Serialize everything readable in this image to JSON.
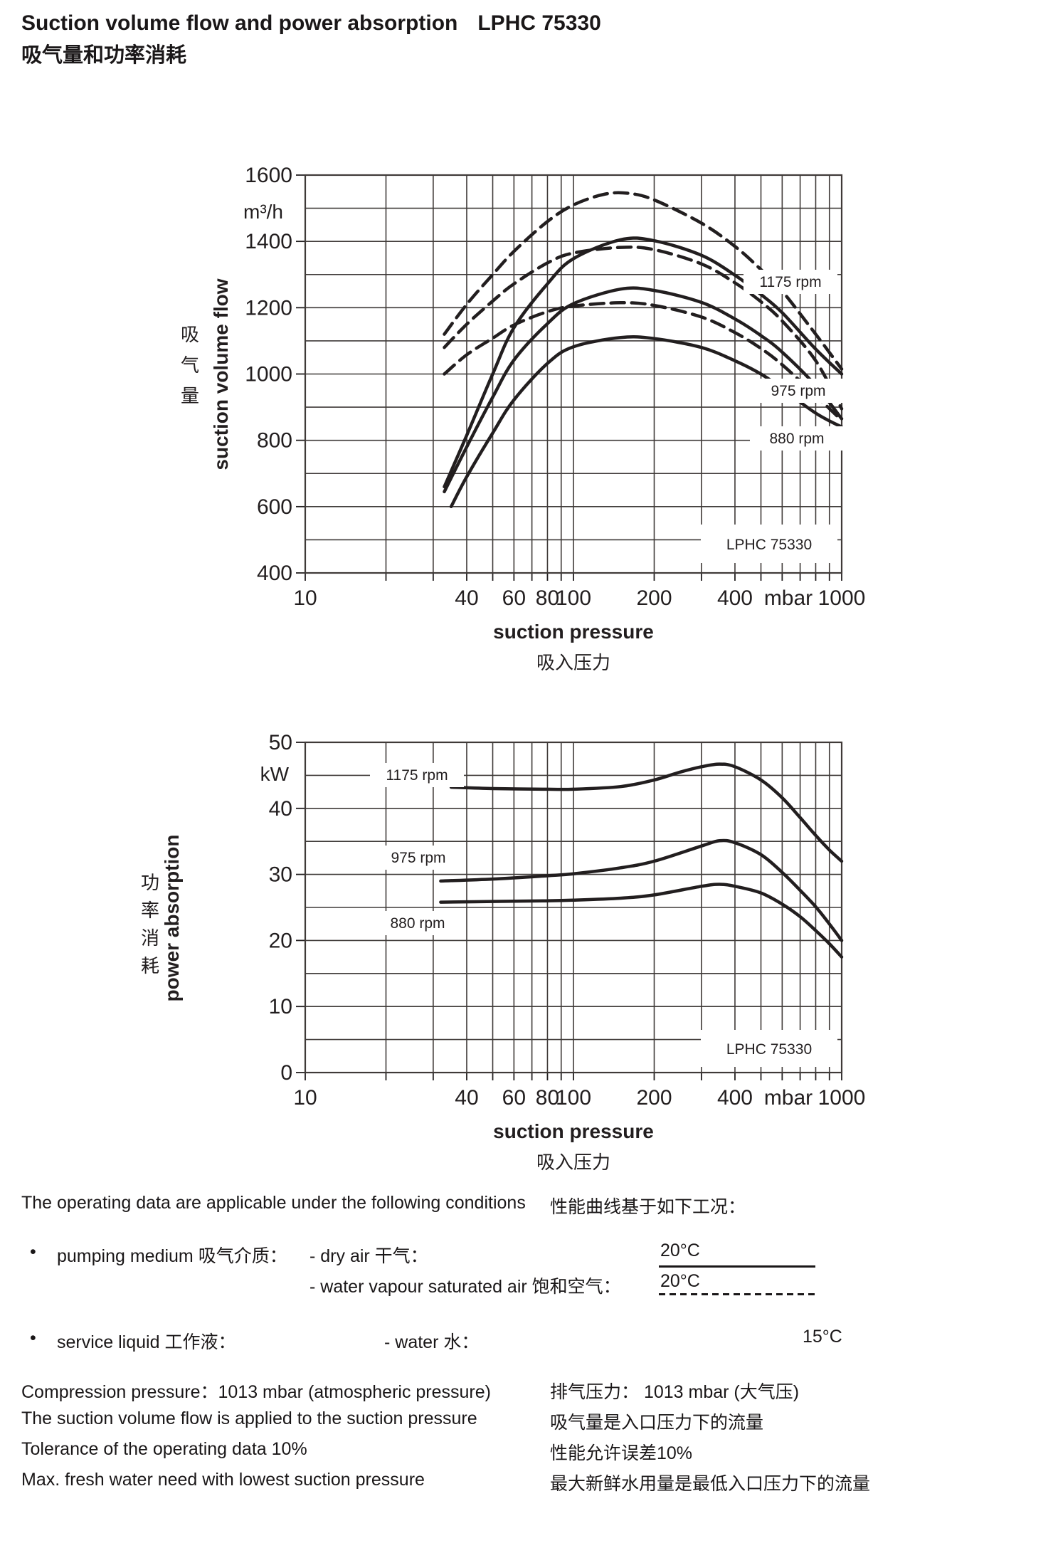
{
  "page": {
    "background": "#ffffff",
    "ink": "#221e1f",
    "grid_color": "#3f3a38"
  },
  "header": {
    "title_en": "Suction volume flow and power absorption",
    "model": "LPHC 75330",
    "title_cn": "吸气量和功率消耗"
  },
  "chart_data": [
    {
      "type": "line",
      "xscale": "log",
      "ylabel": "suction volume flow",
      "ylabel_cn": "吸气量",
      "unit": "m³/h",
      "xlabel": "suction pressure",
      "xlabel_cn": "吸入压力",
      "x_unit": "mbar",
      "xlim": [
        10,
        1000
      ],
      "ylim": [
        400,
        1600
      ],
      "ygrid_step": 100,
      "ylabel_step": 200,
      "xtick_labels": [
        10,
        40,
        60,
        80,
        100,
        200,
        400,
        1000
      ],
      "box_label": "LPHC 75330",
      "legend": [
        "1175 rpm",
        "975 rpm",
        "880 rpm"
      ],
      "grid": true,
      "series": [
        {
          "name": "1175 rpm",
          "style": "dashed",
          "points": [
            [
              33,
              1120
            ],
            [
              40,
              1210
            ],
            [
              50,
              1300
            ],
            [
              60,
              1370
            ],
            [
              80,
              1460
            ],
            [
              100,
              1510
            ],
            [
              130,
              1542
            ],
            [
              160,
              1545
            ],
            [
              200,
              1525
            ],
            [
              300,
              1455
            ],
            [
              400,
              1385
            ],
            [
              500,
              1315
            ],
            [
              600,
              1250
            ],
            [
              800,
              1120
            ],
            [
              1000,
              1015
            ]
          ]
        },
        {
          "name": "975 rpm",
          "style": "dashed",
          "points": [
            [
              33,
              1080
            ],
            [
              40,
              1150
            ],
            [
              50,
              1220
            ],
            [
              60,
              1272
            ],
            [
              80,
              1335
            ],
            [
              100,
              1365
            ],
            [
              150,
              1382
            ],
            [
              200,
              1375
            ],
            [
              300,
              1332
            ],
            [
              400,
              1275
            ],
            [
              500,
              1218
            ],
            [
              600,
              1160
            ],
            [
              800,
              1040
            ],
            [
              1000,
              895
            ]
          ]
        },
        {
          "name": "880 rpm",
          "style": "dashed",
          "points": [
            [
              33,
              1000
            ],
            [
              40,
              1058
            ],
            [
              50,
              1108
            ],
            [
              60,
              1148
            ],
            [
              80,
              1188
            ],
            [
              100,
              1205
            ],
            [
              150,
              1215
            ],
            [
              200,
              1207
            ],
            [
              300,
              1172
            ],
            [
              400,
              1125
            ],
            [
              500,
              1077
            ],
            [
              600,
              1028
            ],
            [
              800,
              935
            ],
            [
              1000,
              860
            ]
          ]
        },
        {
          "name": "1175 rpm",
          "style": "solid",
          "points": [
            [
              33,
              660
            ],
            [
              40,
              815
            ],
            [
              50,
              1000
            ],
            [
              60,
              1140
            ],
            [
              80,
              1272
            ],
            [
              100,
              1348
            ],
            [
              150,
              1405
            ],
            [
              200,
              1402
            ],
            [
              300,
              1358
            ],
            [
              400,
              1298
            ],
            [
              500,
              1240
            ],
            [
              600,
              1185
            ],
            [
              800,
              1075
            ],
            [
              1000,
              1000
            ]
          ]
        },
        {
          "name": "975 rpm",
          "style": "solid",
          "points": [
            [
              33,
              645
            ],
            [
              40,
              780
            ],
            [
              50,
              930
            ],
            [
              60,
              1042
            ],
            [
              80,
              1152
            ],
            [
              100,
              1212
            ],
            [
              150,
              1256
            ],
            [
              200,
              1252
            ],
            [
              300,
              1216
            ],
            [
              400,
              1166
            ],
            [
              500,
              1116
            ],
            [
              600,
              1066
            ],
            [
              800,
              965
            ],
            [
              1000,
              865
            ]
          ]
        },
        {
          "name": "880 rpm",
          "style": "solid",
          "points": [
            [
              35,
              600
            ],
            [
              40,
              690
            ],
            [
              50,
              822
            ],
            [
              60,
              922
            ],
            [
              80,
              1032
            ],
            [
              100,
              1082
            ],
            [
              150,
              1110
            ],
            [
              200,
              1107
            ],
            [
              300,
              1080
            ],
            [
              400,
              1040
            ],
            [
              500,
              1000
            ],
            [
              600,
              956
            ],
            [
              800,
              882
            ],
            [
              1000,
              840
            ]
          ]
        }
      ]
    },
    {
      "type": "line",
      "xscale": "log",
      "ylabel": "power absorption",
      "ylabel_cn": "功率消耗",
      "unit": "kW",
      "xlabel": "suction pressure",
      "xlabel_cn": "吸入压力",
      "x_unit": "mbar",
      "xlim": [
        10,
        1000
      ],
      "ylim": [
        0,
        50
      ],
      "ygrid_step": 5,
      "ylabel_step": 10,
      "xtick_labels": [
        10,
        40,
        60,
        80,
        100,
        200,
        400,
        1000
      ],
      "box_label": "LPHC 75330",
      "legend": [
        "1175 rpm",
        "975 rpm",
        "880 rpm"
      ],
      "grid": true,
      "series": [
        {
          "name": "1175 rpm",
          "style": "solid",
          "points": [
            [
              35,
              43.2
            ],
            [
              50,
              43.0
            ],
            [
              80,
              42.9
            ],
            [
              100,
              42.9
            ],
            [
              150,
              43.3
            ],
            [
              200,
              44.3
            ],
            [
              250,
              45.5
            ],
            [
              300,
              46.3
            ],
            [
              350,
              46.7
            ],
            [
              400,
              46.3
            ],
            [
              500,
              44.3
            ],
            [
              600,
              41.6
            ],
            [
              700,
              38.6
            ],
            [
              800,
              35.9
            ],
            [
              900,
              33.7
            ],
            [
              1000,
              32.0
            ]
          ]
        },
        {
          "name": "975 rpm",
          "style": "solid",
          "points": [
            [
              32,
              29.0
            ],
            [
              50,
              29.3
            ],
            [
              80,
              29.8
            ],
            [
              100,
              30.1
            ],
            [
              150,
              31.0
            ],
            [
              200,
              32.0
            ],
            [
              300,
              34.3
            ],
            [
              350,
              35.1
            ],
            [
              400,
              34.8
            ],
            [
              500,
              33.0
            ],
            [
              600,
              30.3
            ],
            [
              700,
              27.6
            ],
            [
              800,
              25.1
            ],
            [
              900,
              22.5
            ],
            [
              1000,
              20.0
            ]
          ]
        },
        {
          "name": "880 rpm",
          "style": "solid",
          "points": [
            [
              32,
              25.8
            ],
            [
              50,
              25.9
            ],
            [
              80,
              26.0
            ],
            [
              100,
              26.1
            ],
            [
              150,
              26.4
            ],
            [
              200,
              26.9
            ],
            [
              300,
              28.2
            ],
            [
              350,
              28.5
            ],
            [
              400,
              28.2
            ],
            [
              500,
              27.2
            ],
            [
              600,
              25.5
            ],
            [
              700,
              23.6
            ],
            [
              800,
              21.5
            ],
            [
              900,
              19.5
            ],
            [
              1000,
              17.5
            ]
          ]
        }
      ]
    }
  ],
  "cond": {
    "intro_en": "The operating data are applicable under the following conditions",
    "intro_cn": "性能曲线基于如下工况：",
    "bullet": "•",
    "b1_label": "pumping medium  吸气介质：",
    "b1_item1": "- dry air  干气：",
    "b1_val1": "20°C",
    "b1_item2": "- water vapour saturated air  饱和空气：",
    "b1_val2": "20°C",
    "b2_label": "service liquid  工作液：",
    "b2_item1": "- water  水：",
    "b2_val1": "15°C"
  },
  "notes": [
    {
      "en": "Compression pressure：1013 mbar (atmospheric pressure)",
      "cn": "排气压力： 1013 mbar (大气压)"
    },
    {
      "en": "The suction volume flow is applied to the suction pressure",
      "cn": "吸气量是入口压力下的流量"
    },
    {
      "en": "Tolerance of the operating data 10%",
      "cn": "性能允许误差10%"
    },
    {
      "en": "Max. fresh water need with lowest suction pressure",
      "cn": "最大新鲜水用量是最低入口压力下的流量"
    }
  ]
}
